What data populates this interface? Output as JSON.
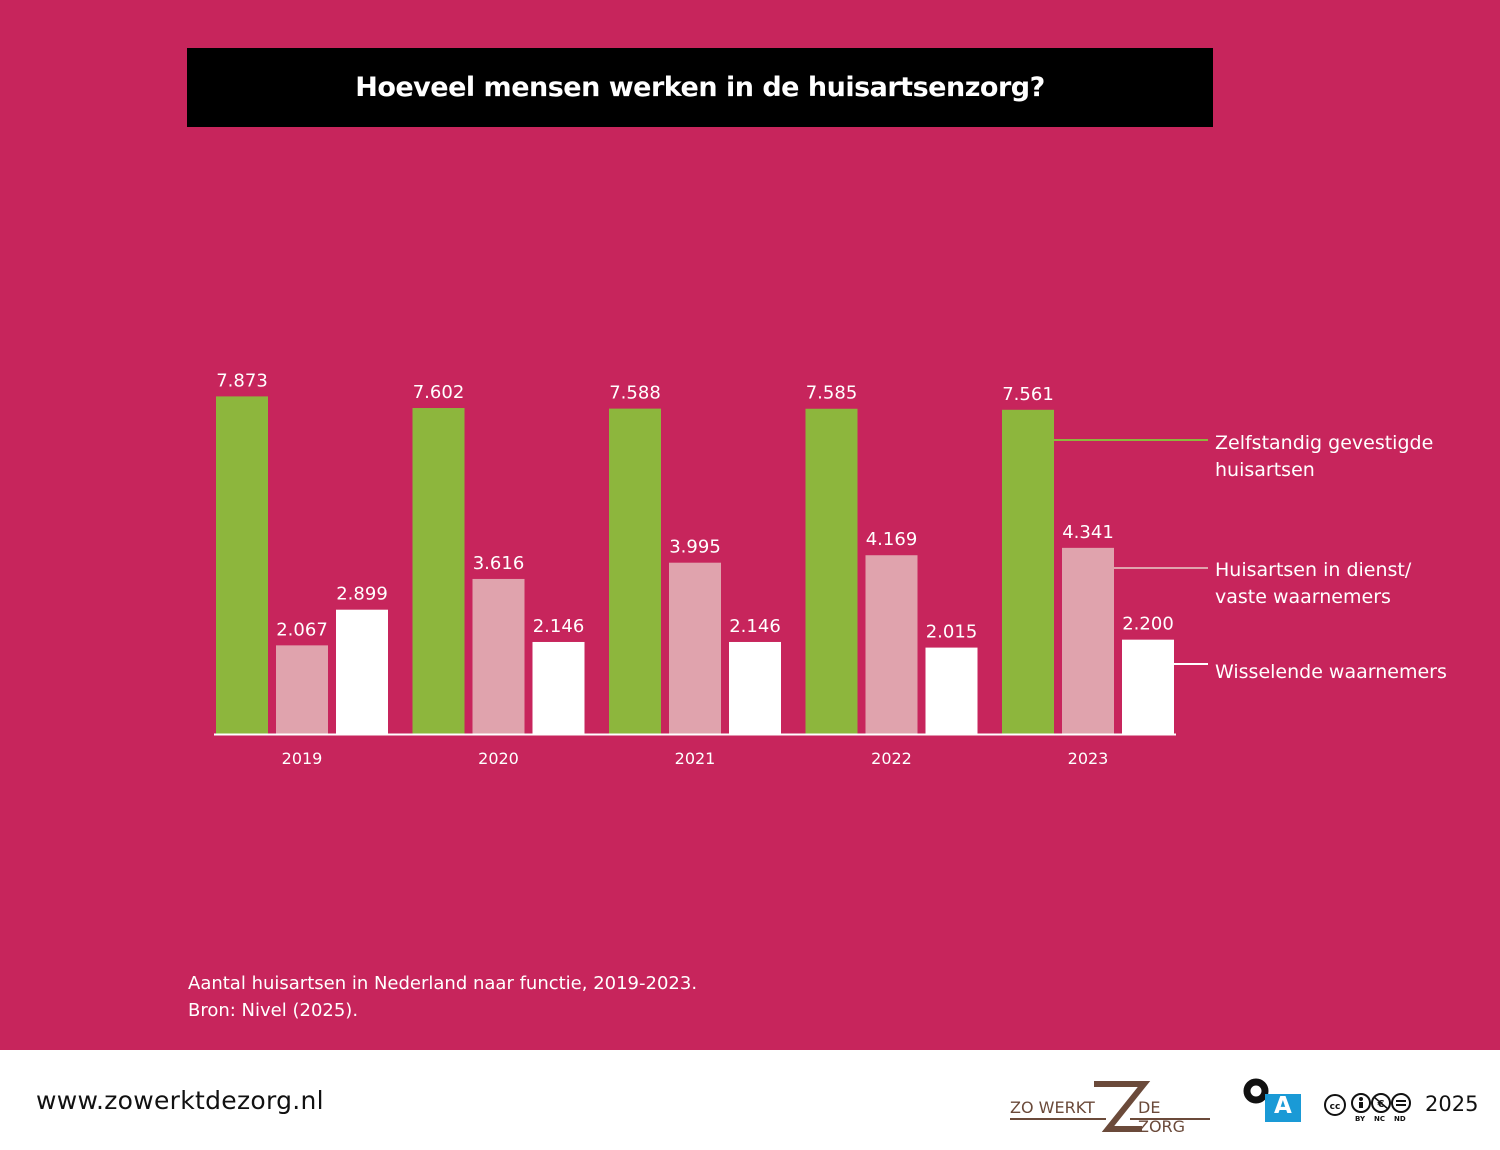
{
  "title": "Hoeveel mensen werken in de huisartsenzorg?",
  "caption": {
    "line1": "Aantal huisartsen in Nederland naar functie, 2019-2023.",
    "line2": "Bron: Nivel (2025)."
  },
  "footer": {
    "url": "www.zowerktdezorg.nl",
    "logo_left": "ZO WERKT",
    "logo_right": "DE ZORG",
    "oa_letter": "A",
    "cc_tags": [
      "BY",
      "NC",
      "ND"
    ],
    "year": "2025"
  },
  "colors": {
    "background": "#c7255c",
    "green": "#8db63d",
    "pink": "#e0a3ad",
    "white": "#ffffff"
  },
  "icons": [
    "zo-werkt-de-zorg-logo",
    "open-access-icon",
    "creative-commons-icon"
  ],
  "chart_data": {
    "type": "bar",
    "categories": [
      "2019",
      "2020",
      "2021",
      "2022",
      "2023"
    ],
    "series": [
      {
        "name": "Zelfstandig gevestigde huisartsen",
        "legend_lines": [
          "Zelfstandig gevestigde",
          "huisartsen"
        ],
        "color": "#8db63d",
        "values": [
          7873,
          7602,
          7588,
          7585,
          7561
        ],
        "labels": [
          "7.873",
          "7.602",
          "7.588",
          "7.585",
          "7.561"
        ]
      },
      {
        "name": "Huisartsen in dienst/ vaste waarnemers",
        "legend_lines": [
          "Huisartsen in dienst/",
          "vaste waarnemers"
        ],
        "color": "#e0a3ad",
        "values": [
          2067,
          3616,
          3995,
          4169,
          4341
        ],
        "labels": [
          "2.067",
          "3.616",
          "3.995",
          "4.169",
          "4.341"
        ]
      },
      {
        "name": "Wisselende waarnemers",
        "legend_lines": [
          "Wisselende waarnemers"
        ],
        "color": "#ffffff",
        "values": [
          2899,
          2146,
          2146,
          2015,
          2200
        ],
        "labels": [
          "2.899",
          "2.146",
          "2.146",
          "2.015",
          "2.200"
        ]
      }
    ],
    "ylim": [
      0,
      8000
    ],
    "legend": "right",
    "grid": false
  }
}
